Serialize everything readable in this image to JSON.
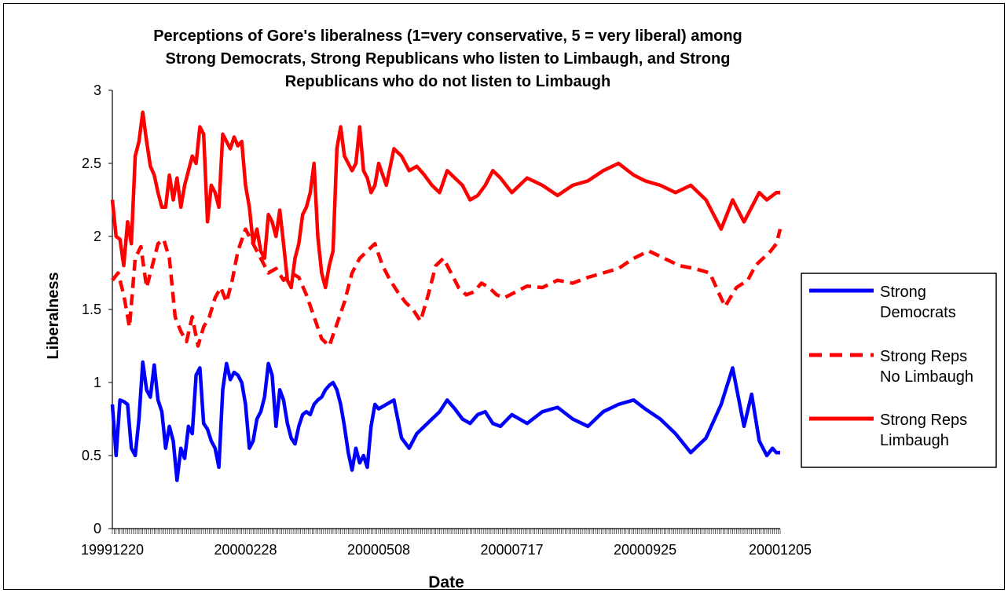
{
  "chart_data": {
    "type": "line",
    "title_lines": [
      "Perceptions of Gore's liberalness (1=very conservative, 5 = very liberal) among",
      "Strong Democrats, Strong Republicans who listen to Limbaugh, and Strong",
      "Republicans who do not listen to Limbaugh"
    ],
    "xlabel": "Date",
    "ylabel": "Liberalness",
    "ylim": [
      0,
      3
    ],
    "y_ticks": [
      "0",
      "0.5",
      "1",
      "1.5",
      "2",
      "2.5",
      "3"
    ],
    "x_ticks": [
      "19991220",
      "20000228",
      "20000508",
      "20000717",
      "20000925",
      "20001205"
    ],
    "x_range": [
      "1999-12-20",
      "2000-12-05"
    ],
    "grid": false,
    "legend_position": "right",
    "series": [
      {
        "name": "Strong Democrats",
        "legend_lines": [
          "Strong",
          "Democrats"
        ],
        "color": "#0000ff",
        "style": "solid",
        "x": [
          "1999-12-20",
          "1999-12-22",
          "1999-12-24",
          "1999-12-26",
          "1999-12-28",
          "1999-12-30",
          "2000-01-01",
          "2000-01-03",
          "2000-01-05",
          "2000-01-07",
          "2000-01-09",
          "2000-01-11",
          "2000-01-13",
          "2000-01-15",
          "2000-01-17",
          "2000-01-19",
          "2000-01-21",
          "2000-01-23",
          "2000-01-25",
          "2000-01-27",
          "2000-01-29",
          "2000-01-31",
          "2000-02-02",
          "2000-02-04",
          "2000-02-06",
          "2000-02-08",
          "2000-02-10",
          "2000-02-12",
          "2000-02-14",
          "2000-02-16",
          "2000-02-18",
          "2000-02-20",
          "2000-02-22",
          "2000-02-24",
          "2000-02-26",
          "2000-02-28",
          "2000-03-01",
          "2000-03-03",
          "2000-03-05",
          "2000-03-07",
          "2000-03-09",
          "2000-03-11",
          "2000-03-13",
          "2000-03-15",
          "2000-03-17",
          "2000-03-19",
          "2000-03-21",
          "2000-03-23",
          "2000-03-25",
          "2000-03-27",
          "2000-03-29",
          "2000-03-31",
          "2000-04-02",
          "2000-04-04",
          "2000-04-06",
          "2000-04-08",
          "2000-04-10",
          "2000-04-12",
          "2000-04-14",
          "2000-04-16",
          "2000-04-18",
          "2000-04-20",
          "2000-04-22",
          "2000-04-24",
          "2000-04-26",
          "2000-04-28",
          "2000-04-30",
          "2000-05-02",
          "2000-05-04",
          "2000-05-06",
          "2000-05-08",
          "2000-05-12",
          "2000-05-16",
          "2000-05-20",
          "2000-05-24",
          "2000-05-28",
          "2000-06-01",
          "2000-06-05",
          "2000-06-09",
          "2000-06-13",
          "2000-06-17",
          "2000-06-21",
          "2000-06-25",
          "2000-06-29",
          "2000-07-03",
          "2000-07-07",
          "2000-07-11",
          "2000-07-17",
          "2000-07-25",
          "2000-08-02",
          "2000-08-10",
          "2000-08-18",
          "2000-08-26",
          "2000-09-03",
          "2000-09-11",
          "2000-09-19",
          "2000-09-25",
          "2000-10-03",
          "2000-10-11",
          "2000-10-19",
          "2000-10-27",
          "2000-11-04",
          "2000-11-10",
          "2000-11-16",
          "2000-11-20",
          "2000-11-24",
          "2000-11-28",
          "2000-12-01",
          "2000-12-03",
          "2000-12-05"
        ],
        "y": [
          0.85,
          0.5,
          0.88,
          0.87,
          0.85,
          0.55,
          0.5,
          0.75,
          1.14,
          0.95,
          0.9,
          1.12,
          0.88,
          0.8,
          0.55,
          0.7,
          0.6,
          0.33,
          0.55,
          0.48,
          0.7,
          0.65,
          1.05,
          1.1,
          0.72,
          0.68,
          0.6,
          0.55,
          0.42,
          0.95,
          1.13,
          1.02,
          1.07,
          1.05,
          1.0,
          0.85,
          0.55,
          0.6,
          0.75,
          0.8,
          0.9,
          1.13,
          1.05,
          0.7,
          0.95,
          0.88,
          0.72,
          0.62,
          0.58,
          0.7,
          0.78,
          0.8,
          0.78,
          0.85,
          0.88,
          0.9,
          0.95,
          0.98,
          1.0,
          0.95,
          0.85,
          0.7,
          0.52,
          0.4,
          0.55,
          0.45,
          0.5,
          0.42,
          0.7,
          0.85,
          0.82,
          0.85,
          0.88,
          0.62,
          0.55,
          0.65,
          0.7,
          0.75,
          0.8,
          0.88,
          0.82,
          0.75,
          0.72,
          0.78,
          0.8,
          0.72,
          0.7,
          0.78,
          0.72,
          0.8,
          0.83,
          0.75,
          0.7,
          0.8,
          0.85,
          0.88,
          0.82,
          0.75,
          0.65,
          0.52,
          0.62,
          0.85,
          1.1,
          0.7,
          0.92,
          0.6,
          0.5,
          0.55,
          0.52,
          0.52
        ]
      },
      {
        "name": "Strong Reps No Limbaugh",
        "legend_lines": [
          "Strong Reps",
          "No Limbaugh"
        ],
        "color": "#ff0000",
        "style": "dashed",
        "x": [
          "1999-12-20",
          "1999-12-23",
          "1999-12-26",
          "1999-12-29",
          "2000-01-01",
          "2000-01-04",
          "2000-01-07",
          "2000-01-10",
          "2000-01-13",
          "2000-01-16",
          "2000-01-19",
          "2000-01-22",
          "2000-01-25",
          "2000-01-28",
          "2000-01-31",
          "2000-02-03",
          "2000-02-06",
          "2000-02-09",
          "2000-02-12",
          "2000-02-15",
          "2000-02-18",
          "2000-02-21",
          "2000-02-24",
          "2000-02-28",
          "2000-03-03",
          "2000-03-07",
          "2000-03-11",
          "2000-03-15",
          "2000-03-19",
          "2000-03-23",
          "2000-03-27",
          "2000-03-31",
          "2000-04-04",
          "2000-04-08",
          "2000-04-12",
          "2000-04-16",
          "2000-04-20",
          "2000-04-24",
          "2000-04-28",
          "2000-05-02",
          "2000-05-06",
          "2000-05-10",
          "2000-05-14",
          "2000-05-18",
          "2000-05-22",
          "2000-05-26",
          "2000-05-30",
          "2000-06-03",
          "2000-06-07",
          "2000-06-11",
          "2000-06-15",
          "2000-06-19",
          "2000-06-23",
          "2000-06-27",
          "2000-07-01",
          "2000-07-05",
          "2000-07-09",
          "2000-07-13",
          "2000-07-19",
          "2000-07-25",
          "2000-08-02",
          "2000-08-10",
          "2000-08-18",
          "2000-08-26",
          "2000-09-03",
          "2000-09-11",
          "2000-09-19",
          "2000-09-27",
          "2000-10-05",
          "2000-10-13",
          "2000-10-21",
          "2000-10-29",
          "2000-11-06",
          "2000-11-12",
          "2000-11-18",
          "2000-11-22",
          "2000-11-26",
          "2000-11-30",
          "2000-12-03",
          "2000-12-05"
        ],
        "y": [
          1.7,
          1.75,
          1.6,
          1.38,
          1.85,
          1.93,
          1.65,
          1.8,
          1.95,
          1.98,
          1.85,
          1.45,
          1.35,
          1.28,
          1.45,
          1.25,
          1.38,
          1.45,
          1.58,
          1.65,
          1.55,
          1.7,
          1.9,
          2.05,
          1.95,
          1.85,
          1.75,
          1.78,
          1.7,
          1.75,
          1.72,
          1.6,
          1.45,
          1.3,
          1.25,
          1.4,
          1.55,
          1.75,
          1.85,
          1.9,
          1.95,
          1.8,
          1.7,
          1.62,
          1.55,
          1.5,
          1.42,
          1.6,
          1.8,
          1.85,
          1.75,
          1.65,
          1.6,
          1.62,
          1.68,
          1.65,
          1.6,
          1.58,
          1.62,
          1.66,
          1.65,
          1.7,
          1.68,
          1.72,
          1.75,
          1.78,
          1.85,
          1.9,
          1.85,
          1.8,
          1.78,
          1.75,
          1.52,
          1.65,
          1.7,
          1.8,
          1.85,
          1.9,
          1.95,
          2.05
        ]
      },
      {
        "name": "Strong Reps Limbaugh",
        "legend_lines": [
          "Strong Reps",
          "Limbaugh"
        ],
        "color": "#ff0000",
        "style": "solid",
        "x": [
          "1999-12-20",
          "1999-12-22",
          "1999-12-24",
          "1999-12-26",
          "1999-12-28",
          "1999-12-30",
          "2000-01-01",
          "2000-01-03",
          "2000-01-05",
          "2000-01-07",
          "2000-01-09",
          "2000-01-11",
          "2000-01-13",
          "2000-01-15",
          "2000-01-17",
          "2000-01-19",
          "2000-01-21",
          "2000-01-23",
          "2000-01-25",
          "2000-01-27",
          "2000-01-29",
          "2000-01-31",
          "2000-02-02",
          "2000-02-04",
          "2000-02-06",
          "2000-02-08",
          "2000-02-10",
          "2000-02-12",
          "2000-02-14",
          "2000-02-16",
          "2000-02-18",
          "2000-02-20",
          "2000-02-22",
          "2000-02-24",
          "2000-02-26",
          "2000-02-28",
          "2000-03-01",
          "2000-03-03",
          "2000-03-05",
          "2000-03-07",
          "2000-03-09",
          "2000-03-11",
          "2000-03-13",
          "2000-03-15",
          "2000-03-17",
          "2000-03-19",
          "2000-03-21",
          "2000-03-23",
          "2000-03-25",
          "2000-03-27",
          "2000-03-29",
          "2000-03-31",
          "2000-04-02",
          "2000-04-04",
          "2000-04-06",
          "2000-04-08",
          "2000-04-10",
          "2000-04-12",
          "2000-04-14",
          "2000-04-16",
          "2000-04-18",
          "2000-04-20",
          "2000-04-22",
          "2000-04-24",
          "2000-04-26",
          "2000-04-28",
          "2000-04-30",
          "2000-05-02",
          "2000-05-04",
          "2000-05-06",
          "2000-05-08",
          "2000-05-12",
          "2000-05-16",
          "2000-05-20",
          "2000-05-24",
          "2000-05-28",
          "2000-06-01",
          "2000-06-05",
          "2000-06-09",
          "2000-06-13",
          "2000-06-17",
          "2000-06-21",
          "2000-06-25",
          "2000-06-29",
          "2000-07-03",
          "2000-07-07",
          "2000-07-11",
          "2000-07-17",
          "2000-07-25",
          "2000-08-02",
          "2000-08-10",
          "2000-08-18",
          "2000-08-26",
          "2000-09-03",
          "2000-09-11",
          "2000-09-19",
          "2000-09-25",
          "2000-10-03",
          "2000-10-11",
          "2000-10-19",
          "2000-10-27",
          "2000-11-04",
          "2000-11-10",
          "2000-11-16",
          "2000-11-20",
          "2000-11-24",
          "2000-11-28",
          "2000-12-01",
          "2000-12-03",
          "2000-12-05"
        ],
        "y": [
          2.25,
          2.0,
          1.98,
          1.8,
          2.1,
          1.95,
          2.55,
          2.65,
          2.85,
          2.65,
          2.48,
          2.42,
          2.3,
          2.2,
          2.2,
          2.42,
          2.25,
          2.4,
          2.2,
          2.35,
          2.45,
          2.55,
          2.5,
          2.75,
          2.7,
          2.1,
          2.35,
          2.3,
          2.2,
          2.7,
          2.65,
          2.6,
          2.68,
          2.62,
          2.65,
          2.35,
          2.2,
          1.95,
          2.05,
          1.9,
          1.85,
          2.15,
          2.1,
          2.0,
          2.18,
          1.95,
          1.7,
          1.65,
          1.85,
          1.95,
          2.15,
          2.2,
          2.3,
          2.5,
          2.0,
          1.75,
          1.65,
          1.8,
          1.9,
          2.6,
          2.75,
          2.55,
          2.5,
          2.45,
          2.5,
          2.75,
          2.45,
          2.4,
          2.3,
          2.35,
          2.5,
          2.35,
          2.6,
          2.55,
          2.45,
          2.48,
          2.42,
          2.35,
          2.3,
          2.45,
          2.4,
          2.35,
          2.25,
          2.28,
          2.35,
          2.45,
          2.4,
          2.3,
          2.4,
          2.35,
          2.28,
          2.35,
          2.38,
          2.45,
          2.5,
          2.42,
          2.38,
          2.35,
          2.3,
          2.35,
          2.25,
          2.05,
          2.25,
          2.1,
          2.2,
          2.3,
          2.25,
          2.28,
          2.3,
          2.3
        ]
      }
    ]
  }
}
